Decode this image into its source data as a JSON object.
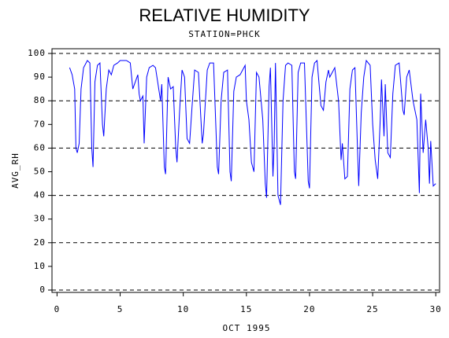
{
  "chart_data": {
    "type": "line",
    "title": "RELATIVE HUMIDITY",
    "subtitle": "STATION=PHCK",
    "x_label": "OCT 1995",
    "y_label": "AVG_RH",
    "xlim": [
      -0.4,
      30.3
    ],
    "ylim": [
      -1,
      102
    ],
    "xticks": [
      0,
      5,
      10,
      15,
      20,
      25,
      30
    ],
    "yticks": [
      0,
      10,
      20,
      30,
      40,
      50,
      60,
      70,
      80,
      90,
      100
    ],
    "grid_lines": [
      0,
      20,
      40,
      60,
      80,
      100
    ],
    "color": "#0000ff",
    "x": [
      1.0,
      1.2,
      1.4,
      1.5,
      1.6,
      1.75,
      1.9,
      2.1,
      2.4,
      2.6,
      2.75,
      2.85,
      3.0,
      3.2,
      3.4,
      3.6,
      3.7,
      3.9,
      4.1,
      4.3,
      4.5,
      4.8,
      5.0,
      5.5,
      5.8,
      6.0,
      6.2,
      6.4,
      6.5,
      6.6,
      6.8,
      6.9,
      7.1,
      7.3,
      7.6,
      7.8,
      8.0,
      8.2,
      8.3,
      8.5,
      8.6,
      8.8,
      9.0,
      9.2,
      9.4,
      9.5,
      9.7,
      9.9,
      10.1,
      10.3,
      10.5,
      10.7,
      10.9,
      11.2,
      11.5,
      11.6,
      11.9,
      12.1,
      12.4,
      12.7,
      12.8,
      13.0,
      13.2,
      13.5,
      13.7,
      13.8,
      14.0,
      14.2,
      14.5,
      14.7,
      14.9,
      15.0,
      15.2,
      15.4,
      15.6,
      15.8,
      16.0,
      16.3,
      16.5,
      16.6,
      16.8,
      16.9,
      17.1,
      17.2,
      17.3,
      17.5,
      17.7,
      17.9,
      18.1,
      18.3,
      18.6,
      18.8,
      18.9,
      19.1,
      19.3,
      19.6,
      19.9,
      20.0,
      20.2,
      20.4,
      20.6,
      20.9,
      21.1,
      21.3,
      21.5,
      21.6,
      21.8,
      22.0,
      22.3,
      22.5,
      22.6,
      22.8,
      23.0,
      23.2,
      23.4,
      23.6,
      23.8,
      23.9,
      24.1,
      24.3,
      24.5,
      24.8,
      25.0,
      25.2,
      25.4,
      25.6,
      25.7,
      25.9,
      26.0,
      26.2,
      26.4,
      26.6,
      26.8,
      27.1,
      27.4,
      27.5,
      27.7,
      27.9,
      28.2,
      28.5,
      28.7,
      28.8,
      29.0,
      29.2,
      29.4,
      29.5,
      29.6,
      29.8,
      30.0
    ],
    "values": [
      94,
      91,
      85,
      60,
      58,
      62,
      85,
      94,
      97,
      96,
      60,
      52,
      88,
      95,
      96,
      70,
      65,
      85,
      93,
      91,
      95,
      96,
      97,
      97,
      96,
      85,
      88,
      91,
      83,
      80,
      82,
      62,
      90,
      94,
      95,
      94,
      87,
      80,
      87,
      52,
      49,
      90,
      85,
      86,
      60,
      54,
      75,
      93,
      90,
      64,
      62,
      78,
      93,
      92,
      62,
      66,
      93,
      96,
      96,
      52,
      49,
      80,
      92,
      93,
      50,
      46,
      84,
      90,
      91,
      93,
      95,
      80,
      72,
      54,
      50,
      92,
      90,
      72,
      45,
      39,
      86,
      94,
      48,
      62,
      96,
      40,
      36,
      80,
      95,
      96,
      95,
      50,
      47,
      92,
      96,
      96,
      46,
      43,
      90,
      96,
      97,
      78,
      76,
      88,
      93,
      90,
      92,
      94,
      80,
      55,
      62,
      47,
      48,
      85,
      93,
      94,
      60,
      44,
      75,
      90,
      97,
      95,
      70,
      55,
      47,
      72,
      89,
      65,
      87,
      58,
      56,
      83,
      95,
      96,
      76,
      74,
      90,
      93,
      80,
      72,
      41,
      83,
      58,
      72,
      60,
      45,
      63,
      44,
      45
    ]
  }
}
